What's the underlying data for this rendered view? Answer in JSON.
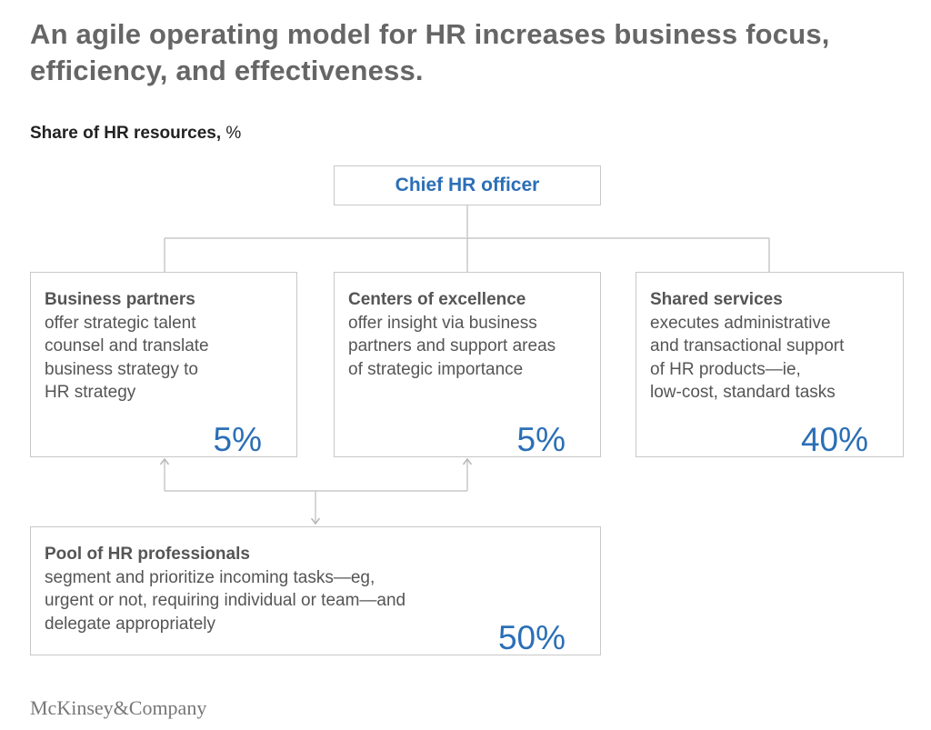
{
  "header": {
    "title_lines": [
      "An agile operating model for HR increases business focus,",
      "efficiency, and effectiveness."
    ],
    "subtitle": "Share of HR resources,",
    "subtitle_unit": "%"
  },
  "root": {
    "label": "Chief HR officer"
  },
  "nodes": [
    {
      "heading": "Business partners",
      "lines": [
        "offer strategic talent",
        "counsel and translate",
        "business strategy to",
        "HR strategy"
      ],
      "share": "5%"
    },
    {
      "heading": "Centers of excellence",
      "lines": [
        "offer insight via business",
        "partners and support areas",
        "of strategic importance"
      ],
      "share": "5%"
    },
    {
      "heading": "Shared services",
      "lines": [
        "executes administrative",
        "and transactional support",
        "of HR products—ie,",
        "low-cost, standard tasks"
      ],
      "share": "40%"
    },
    {
      "heading": "Pool of HR professionals",
      "lines": [
        "segment and prioritize incoming tasks—eg,",
        "urgent or not, requiring individual or team—and",
        "delegate appropriately"
      ],
      "share": "50%"
    }
  ],
  "footer": {
    "brand": "McKinsey&Company"
  }
}
